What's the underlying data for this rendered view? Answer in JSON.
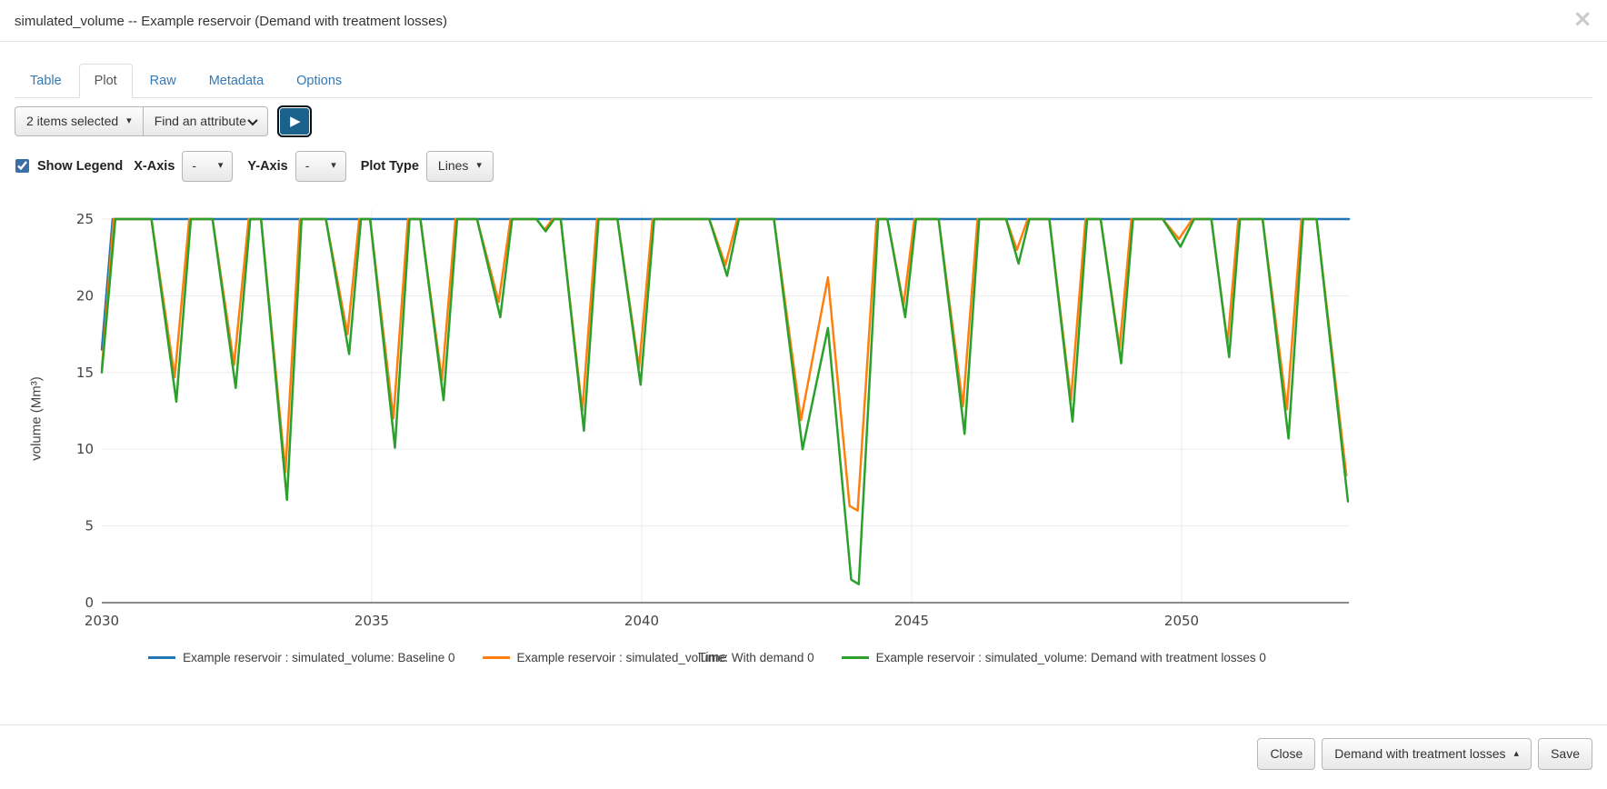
{
  "modal": {
    "title": "simulated_volume -- Example reservoir (Demand with treatment losses)"
  },
  "icons": {
    "close": "×",
    "caret_down": "▾",
    "caret_up": "▴",
    "play": "▶",
    "find_attribute_chevron": "chevron-down"
  },
  "tabs": {
    "items": [
      {
        "label": "Table",
        "active": false
      },
      {
        "label": "Plot",
        "active": true
      },
      {
        "label": "Raw",
        "active": false
      },
      {
        "label": "Metadata",
        "active": false
      },
      {
        "label": "Options",
        "active": false
      }
    ]
  },
  "toolbar": {
    "items_selected_label": "2 items selected",
    "find_attribute_label": "Find an attribute"
  },
  "plot_controls": {
    "show_legend_label": "Show Legend",
    "show_legend_checked": "checked",
    "x_axis_label": "X-Axis",
    "x_axis_value": "-",
    "y_axis_label": "Y-Axis",
    "y_axis_value": "-",
    "plot_type_label": "Plot Type",
    "plot_type_value": "Lines"
  },
  "chart_data": {
    "type": "line",
    "title": "",
    "xlabel": "Time",
    "ylabel": "volume (Mm³)",
    "xlim": [
      2030,
      2053.1
    ],
    "ylim": [
      0,
      25
    ],
    "x_ticks": [
      2030,
      2035,
      2040,
      2045,
      2050
    ],
    "y_ticks": [
      0,
      5,
      10,
      15,
      20,
      25
    ],
    "grid": true,
    "legend_position": "bottom",
    "series": [
      {
        "name": "Example reservoir : simulated_volume: Baseline 0",
        "color": "#1f77b4",
        "points": [
          [
            2030,
            16.5
          ],
          [
            2030.2,
            25
          ],
          [
            2053.1,
            25
          ]
        ]
      },
      {
        "name": "Example reservoir : simulated_volume: With demand 0",
        "color": "#ff7f0e",
        "points": [
          [
            2030,
            15.2
          ],
          [
            2030.22,
            25
          ],
          [
            2030.92,
            25
          ],
          [
            2031.35,
            14.7
          ],
          [
            2031.62,
            25
          ],
          [
            2032.05,
            25
          ],
          [
            2032.45,
            15.5
          ],
          [
            2032.72,
            25
          ],
          [
            2032.95,
            25
          ],
          [
            2033.4,
            8.5
          ],
          [
            2033.67,
            25
          ],
          [
            2034.15,
            25
          ],
          [
            2034.55,
            17.5
          ],
          [
            2034.77,
            25
          ],
          [
            2034.97,
            25
          ],
          [
            2035.4,
            12.0
          ],
          [
            2035.67,
            25
          ],
          [
            2035.9,
            25
          ],
          [
            2036.3,
            14.5
          ],
          [
            2036.55,
            25
          ],
          [
            2036.95,
            25
          ],
          [
            2037.35,
            19.6
          ],
          [
            2037.57,
            25
          ],
          [
            2038.05,
            25
          ],
          [
            2038.2,
            24.3
          ],
          [
            2038.35,
            25
          ],
          [
            2038.5,
            25
          ],
          [
            2038.9,
            12.5
          ],
          [
            2039.17,
            25
          ],
          [
            2039.55,
            25
          ],
          [
            2039.95,
            15.3
          ],
          [
            2040.2,
            25
          ],
          [
            2041.25,
            25
          ],
          [
            2041.55,
            22.0
          ],
          [
            2041.77,
            25
          ],
          [
            2042.45,
            25
          ],
          [
            2042.95,
            11.9
          ],
          [
            2043.45,
            21.2
          ],
          [
            2043.85,
            6.3
          ],
          [
            2044.0,
            6.0
          ],
          [
            2044.35,
            25
          ],
          [
            2044.55,
            25
          ],
          [
            2044.85,
            19.4
          ],
          [
            2045.05,
            25
          ],
          [
            2045.5,
            25
          ],
          [
            2045.95,
            12.8
          ],
          [
            2046.22,
            25
          ],
          [
            2046.75,
            25
          ],
          [
            2046.95,
            23.0
          ],
          [
            2047.15,
            25
          ],
          [
            2047.55,
            25
          ],
          [
            2047.95,
            13.2
          ],
          [
            2048.22,
            25
          ],
          [
            2048.5,
            25
          ],
          [
            2048.85,
            16.6
          ],
          [
            2049.07,
            25
          ],
          [
            2049.65,
            25
          ],
          [
            2049.95,
            23.7
          ],
          [
            2050.2,
            25
          ],
          [
            2050.55,
            25
          ],
          [
            2050.85,
            16.9
          ],
          [
            2051.05,
            25
          ],
          [
            2051.5,
            25
          ],
          [
            2051.95,
            12.6
          ],
          [
            2052.22,
            25
          ],
          [
            2052.5,
            25
          ],
          [
            2053.05,
            8.3
          ]
        ]
      },
      {
        "name": "Example reservoir : simulated_volume: Demand with treatment losses 0",
        "color": "#2ca02c",
        "points": [
          [
            2030,
            15.0
          ],
          [
            2030.25,
            25
          ],
          [
            2030.92,
            25
          ],
          [
            2031.38,
            13.1
          ],
          [
            2031.65,
            25
          ],
          [
            2032.05,
            25
          ],
          [
            2032.48,
            14.0
          ],
          [
            2032.75,
            25
          ],
          [
            2032.95,
            25
          ],
          [
            2033.43,
            6.7
          ],
          [
            2033.7,
            25
          ],
          [
            2034.15,
            25
          ],
          [
            2034.58,
            16.2
          ],
          [
            2034.8,
            25
          ],
          [
            2034.97,
            25
          ],
          [
            2035.43,
            10.1
          ],
          [
            2035.7,
            25
          ],
          [
            2035.9,
            25
          ],
          [
            2036.33,
            13.2
          ],
          [
            2036.58,
            25
          ],
          [
            2036.95,
            25
          ],
          [
            2037.38,
            18.6
          ],
          [
            2037.6,
            25
          ],
          [
            2038.05,
            25
          ],
          [
            2038.22,
            24.2
          ],
          [
            2038.38,
            25
          ],
          [
            2038.5,
            25
          ],
          [
            2038.93,
            11.2
          ],
          [
            2039.2,
            25
          ],
          [
            2039.55,
            25
          ],
          [
            2039.98,
            14.2
          ],
          [
            2040.23,
            25
          ],
          [
            2041.25,
            25
          ],
          [
            2041.58,
            21.3
          ],
          [
            2041.8,
            25
          ],
          [
            2042.45,
            25
          ],
          [
            2042.98,
            10.0
          ],
          [
            2043.45,
            17.9
          ],
          [
            2043.88,
            1.5
          ],
          [
            2044.02,
            1.2
          ],
          [
            2044.38,
            25
          ],
          [
            2044.55,
            25
          ],
          [
            2044.88,
            18.6
          ],
          [
            2045.08,
            25
          ],
          [
            2045.5,
            25
          ],
          [
            2045.98,
            11.0
          ],
          [
            2046.25,
            25
          ],
          [
            2046.75,
            25
          ],
          [
            2046.98,
            22.1
          ],
          [
            2047.18,
            25
          ],
          [
            2047.55,
            25
          ],
          [
            2047.98,
            11.8
          ],
          [
            2048.25,
            25
          ],
          [
            2048.5,
            25
          ],
          [
            2048.88,
            15.6
          ],
          [
            2049.1,
            25
          ],
          [
            2049.65,
            25
          ],
          [
            2049.98,
            23.2
          ],
          [
            2050.23,
            25
          ],
          [
            2050.55,
            25
          ],
          [
            2050.88,
            16.0
          ],
          [
            2051.08,
            25
          ],
          [
            2051.5,
            25
          ],
          [
            2051.98,
            10.7
          ],
          [
            2052.25,
            25
          ],
          [
            2052.5,
            25
          ],
          [
            2053.08,
            6.6
          ]
        ]
      }
    ]
  },
  "footer": {
    "close_label": "Close",
    "scenario_label": "Demand with treatment losses",
    "save_label": "Save"
  }
}
